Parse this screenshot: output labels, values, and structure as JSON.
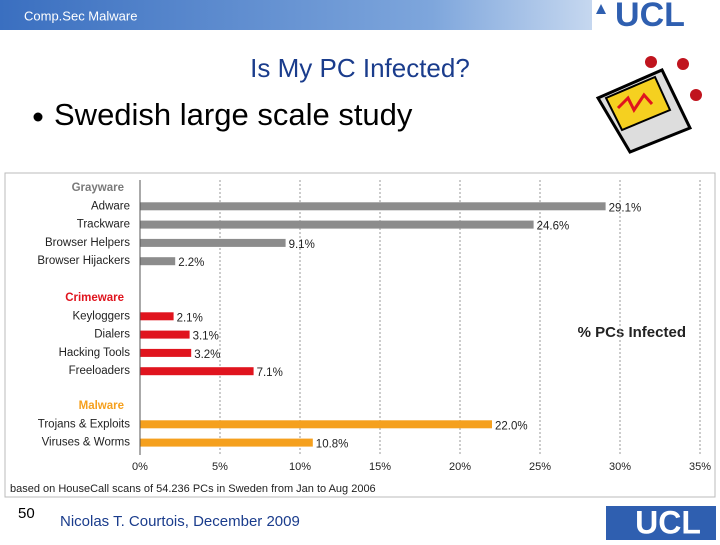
{
  "slide": {
    "header": "Comp.Sec Malware",
    "logo": "UCL",
    "title": "Is My PC Infected?",
    "bullet": "Swedish large scale study",
    "page_number": "50",
    "footer": "Nicolas T. Courtois, December 2009",
    "footer_logo": "UCL"
  },
  "chart_data": {
    "type": "bar",
    "orientation": "horizontal",
    "annotation": "% PCs Infected",
    "note": "based on HouseCall scans of 54.236 PCs in Sweden from Jan to Aug 2006",
    "xlim": [
      0,
      35
    ],
    "xticks": [
      {
        "value": 0,
        "label": "0%"
      },
      {
        "value": 5,
        "label": "5%"
      },
      {
        "value": 10,
        "label": "10%"
      },
      {
        "value": 15,
        "label": "15%"
      },
      {
        "value": 20,
        "label": "20%"
      },
      {
        "value": 25,
        "label": "25%"
      },
      {
        "value": 30,
        "label": "30%"
      },
      {
        "value": 35,
        "label": "35%"
      }
    ],
    "grid": true,
    "groups": [
      {
        "name": "Grayware",
        "color": "#8c8c8c",
        "label_color": "#7a7a7a",
        "categories": [
          "Adware",
          "Trackware",
          "Browser Helpers",
          "Browser Hijackers"
        ],
        "values": [
          29.1,
          24.6,
          9.1,
          2.2
        ],
        "value_labels": [
          "29.1%",
          "24.6%",
          "9.1%",
          "2.2%"
        ]
      },
      {
        "name": "Crimeware",
        "color": "#e0141e",
        "label_color": "#e0141e",
        "categories": [
          "Keyloggers",
          "Dialers",
          "Hacking Tools",
          "Freeloaders"
        ],
        "values": [
          2.1,
          3.1,
          3.2,
          7.1
        ],
        "value_labels": [
          "2.1%",
          "3.1%",
          "3.2%",
          "7.1%"
        ]
      },
      {
        "name": "Malware",
        "color": "#f5a01e",
        "label_color": "#f5a01e",
        "categories": [
          "Trojans & Exploits",
          "Viruses & Worms"
        ],
        "values": [
          22.0,
          10.8
        ],
        "value_labels": [
          "22.0%",
          "10.8%"
        ]
      }
    ]
  }
}
